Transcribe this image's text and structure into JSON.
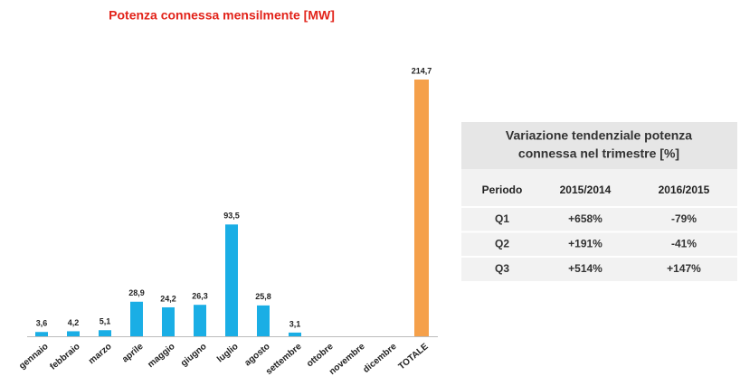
{
  "chart_data": {
    "type": "bar",
    "title": "Potenza connessa mensilmente [MW]",
    "categories": [
      "gennaio",
      "febbraio",
      "marzo",
      "aprile",
      "maggio",
      "giugno",
      "luglio",
      "agosto",
      "settembre",
      "ottobre",
      "novembre",
      "dicembre",
      "TOTALE"
    ],
    "values": [
      3.6,
      4.2,
      5.1,
      28.9,
      24.2,
      26.3,
      93.5,
      25.8,
      3.1,
      null,
      null,
      null,
      214.7
    ],
    "value_labels": [
      "3,6",
      "4,2",
      "5,1",
      "28,9",
      "24,2",
      "26,3",
      "93,5",
      "25,8",
      "3,1",
      null,
      null,
      null,
      "214,7"
    ],
    "colors": [
      "#1aaee5",
      "#1aaee5",
      "#1aaee5",
      "#1aaee5",
      "#1aaee5",
      "#1aaee5",
      "#1aaee5",
      "#1aaee5",
      "#1aaee5",
      "#1aaee5",
      "#1aaee5",
      "#1aaee5",
      "#f5a04a"
    ],
    "title_color": "#e2231a"
  },
  "table": {
    "title_lines": [
      "Variazione tendenziale potenza",
      "connessa nel trimestre [%]"
    ],
    "header": [
      "Periodo",
      "2015/2014",
      "2016/2015"
    ],
    "rows": [
      [
        "Q1",
        "+658%",
        "-79%"
      ],
      [
        "Q2",
        "+191%",
        "-41%"
      ],
      [
        "Q3",
        "+514%",
        "+147%"
      ]
    ],
    "negative_color": "#e2231a"
  }
}
